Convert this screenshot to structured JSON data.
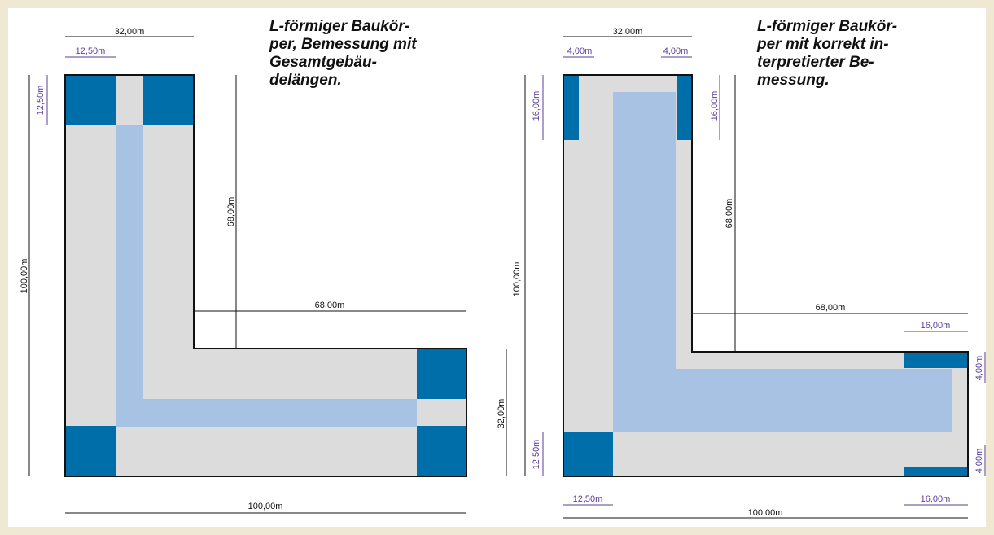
{
  "colors": {
    "background": "#efe9d4",
    "zone_gray": "#dcdcdc",
    "zone_dark_blue": "#006ea8",
    "zone_light_blue": "#a7c2e2",
    "dim_purple": "#5b3f9a"
  },
  "left": {
    "title": "L-förmiger Baukör-\nper, Bemessung mit\nGesamtgebäu-\ndelängen.",
    "dim_top": "32,00m",
    "dim_top_sub": "12,50m",
    "dim_side_sub": "12,50m",
    "dim_left": "100,00m",
    "dim_inner_v": "68,00m",
    "dim_inner_h": "68,00m",
    "dim_bottom": "100,00m"
  },
  "right": {
    "title": "L-förmiger Baukör-\nper mit korrekt in-\nterpretierter Be-\nmessung.",
    "dim_top": "32,00m",
    "dim_top_sub_a": "4,00m",
    "dim_top_sub_b": "4,00m",
    "dim_side_a": "16,00m",
    "dim_side_b": "16,00m",
    "dim_left": "100,00m",
    "dim_inner_v": "68,00m",
    "dim_inner_h": "68,00m",
    "dim_right_sub_top": "16,00m",
    "dim_right_a": "4,00m",
    "dim_right_b": "4,00m",
    "dim_wing": "32,00m",
    "dim_corner": "12,50m",
    "dim_bottom_sub_a": "12,50m",
    "dim_bottom_sub_b": "16,00m",
    "dim_bottom": "100,00m"
  }
}
